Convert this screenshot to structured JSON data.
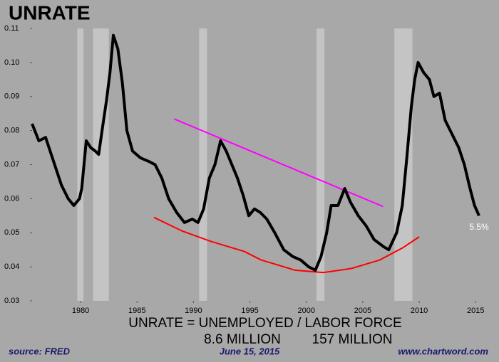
{
  "chart_data": {
    "type": "line",
    "title": "UNRATE",
    "x": [
      1975.7,
      1976.3,
      1976.9,
      1977.6,
      1978.3,
      1978.9,
      1979.4,
      1979.9,
      1980.1,
      1980.5,
      1980.9,
      1981.3,
      1981.6,
      1981.9,
      1982.3,
      1982.6,
      1982.9,
      1983.3,
      1983.7,
      1984.1,
      1984.6,
      1985.3,
      1986.0,
      1986.6,
      1987.2,
      1987.8,
      1988.5,
      1989.2,
      1989.9,
      1990.4,
      1990.9,
      1991.4,
      1991.9,
      1992.4,
      1992.9,
      1993.4,
      1993.9,
      1994.4,
      1994.9,
      1995.4,
      1995.9,
      1996.5,
      1997.2,
      1998.0,
      1998.8,
      1999.5,
      2000.2,
      2000.8,
      2001.3,
      2001.8,
      2002.2,
      2002.8,
      2003.4,
      2003.9,
      2004.6,
      2005.3,
      2006.0,
      2006.8,
      2007.3,
      2008.0,
      2008.5,
      2008.9,
      2009.3,
      2009.6,
      2009.9,
      2010.4,
      2010.9,
      2011.3,
      2011.8,
      2012.3,
      2012.9,
      2013.5,
      2014.0,
      2014.5,
      2014.9,
      2015.3
    ],
    "series": [
      {
        "name": "UNRATE",
        "color": "#000000",
        "values": [
          0.082,
          0.077,
          0.078,
          0.071,
          0.064,
          0.06,
          0.058,
          0.06,
          0.063,
          0.077,
          0.075,
          0.074,
          0.073,
          0.08,
          0.089,
          0.097,
          0.108,
          0.104,
          0.094,
          0.08,
          0.074,
          0.072,
          0.071,
          0.07,
          0.066,
          0.06,
          0.056,
          0.053,
          0.054,
          0.053,
          0.057,
          0.066,
          0.07,
          0.077,
          0.074,
          0.07,
          0.066,
          0.061,
          0.055,
          0.057,
          0.056,
          0.054,
          0.05,
          0.045,
          0.043,
          0.042,
          0.04,
          0.039,
          0.043,
          0.05,
          0.058,
          0.058,
          0.063,
          0.059,
          0.055,
          0.052,
          0.048,
          0.046,
          0.045,
          0.05,
          0.058,
          0.072,
          0.087,
          0.095,
          0.1,
          0.097,
          0.095,
          0.09,
          0.091,
          0.083,
          0.079,
          0.075,
          0.07,
          0.063,
          0.058,
          0.055
        ]
      }
    ],
    "trend_lines": [
      {
        "color": "#ff00ff",
        "x": [
          1988.3,
          2006.8
        ],
        "values": [
          0.0834,
          0.0577
        ]
      },
      {
        "color": "#ff0000",
        "x": [
          1986.5,
          1989,
          1991.5,
          1994.5,
          1996,
          1999,
          2001.5,
          2004,
          2006.5,
          2008.5,
          2010
        ],
        "values": [
          0.0545,
          0.0505,
          0.0475,
          0.0445,
          0.042,
          0.039,
          0.0383,
          0.0395,
          0.042,
          0.0455,
          0.0488
        ]
      }
    ],
    "shaded_regions": [
      [
        1979.7,
        1980.25
      ],
      [
        1981.1,
        1982.5
      ],
      [
        1990.5,
        1991.2
      ],
      [
        2000.9,
        2001.6
      ],
      [
        2007.8,
        2009.4
      ]
    ],
    "shade_color": "#c4c4c4",
    "xlim": [
      1975.7,
      2015.3
    ],
    "ylim": [
      0.03,
      0.11
    ],
    "xticks": [
      1980,
      1985,
      1990,
      1995,
      2000,
      2005,
      2010,
      2015
    ],
    "yticks": [
      0.03,
      0.04,
      0.05,
      0.06,
      0.07,
      0.08,
      0.09,
      {
        "value": 0.1,
        "label": "0.10"
      },
      0.11
    ],
    "end_label": "5.5%",
    "formula": "UNRATE = UNEMPLOYED / LABOR FORCE",
    "numerator": "8.6 MILLION",
    "denominator": "157 MILLION",
    "source": "source: FRED",
    "date": "June 15, 2015",
    "website": "www.chartword.com"
  }
}
